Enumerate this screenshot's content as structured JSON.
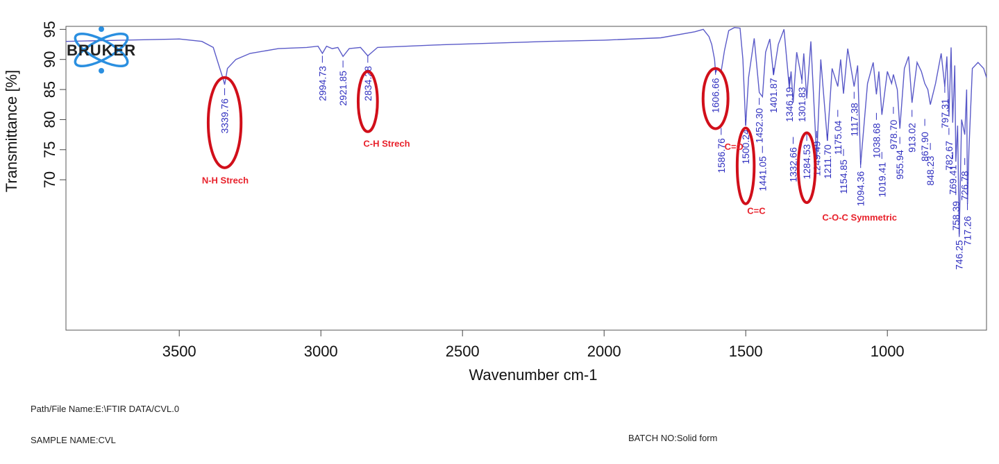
{
  "logo": {
    "text": "BRUKER"
  },
  "footer": {
    "path_label": "Path/File Name:E:\\FTIR DATA/CVL.0",
    "sample_label": "SAMPLE NAME:CVL",
    "batch_label": "BATCH NO:Solid form"
  },
  "colors": {
    "spectrum": "#5a5ac8",
    "peak_labels": "#2f2fbf",
    "annotations": "#e8212b",
    "ellipses": "#d10f1a"
  },
  "chart_data": {
    "type": "line",
    "xlabel": "Wavenumber cm-1",
    "ylabel": "Transmittance [%]",
    "xlim": [
      3900,
      650
    ],
    "ylim": [
      45,
      95.5
    ],
    "x_ticks": [
      3500,
      3000,
      2500,
      2000,
      1500,
      1000
    ],
    "y_ticks": [
      70,
      75,
      80,
      85,
      90,
      95
    ],
    "grid": false,
    "series": [
      {
        "x": [
          3900,
          3700,
          3500,
          3420,
          3380,
          3360,
          3350,
          3345,
          3339.76,
          3330,
          3300,
          3250,
          3150,
          3050,
          3010,
          2994.73,
          2980,
          2960,
          2940,
          2921.85,
          2900,
          2860,
          2834.28,
          2800,
          2600,
          2400,
          2200,
          2000,
          1800,
          1680,
          1650,
          1630,
          1620,
          1610,
          1606.66,
          1600,
          1586.76,
          1575,
          1560,
          1540,
          1520,
          1510,
          1500.24,
          1490,
          1470,
          1452.3,
          1441.05,
          1430,
          1415,
          1401.87,
          1385,
          1365,
          1346.19,
          1340,
          1332.66,
          1320,
          1301.83,
          1295,
          1284.53,
          1270,
          1249.49,
          1235,
          1211.7,
          1195,
          1175.04,
          1165,
          1154.85,
          1140,
          1117.38,
          1105,
          1094.36,
          1070,
          1050,
          1038.68,
          1030,
          1019.41,
          1000,
          985,
          978.7,
          965,
          955.94,
          940,
          925,
          913.02,
          895,
          880,
          867.9,
          857,
          848.23,
          830,
          810,
          797.31,
          790,
          782.67,
          775,
          769.41,
          762,
          758.39,
          752,
          746.25,
          738,
          726.78,
          720,
          717.26,
          712,
          700,
          680,
          660,
          650
        ],
        "y": [
          93.0,
          93.2,
          93.4,
          93.0,
          92.0,
          89.0,
          87.5,
          86.8,
          85.8,
          88.5,
          90.0,
          91.0,
          91.8,
          92.0,
          92.2,
          91.0,
          92.2,
          91.8,
          92.0,
          90.5,
          91.8,
          92.0,
          90.6,
          92.0,
          92.4,
          92.7,
          93.0,
          93.2,
          93.6,
          94.6,
          95.0,
          93.8,
          92.5,
          90.0,
          87.8,
          88.5,
          88.0,
          91.5,
          94.8,
          95.3,
          95.2,
          90.0,
          79.0,
          87.0,
          93.5,
          84.5,
          83.8,
          91.2,
          93.4,
          87.4,
          92.5,
          95.0,
          85.2,
          88.0,
          82.8,
          91.2,
          86.6,
          91.0,
          83.5,
          93.0,
          73.5,
          90.0,
          76.5,
          88.5,
          85.5,
          90.0,
          84.3,
          91.8,
          85.5,
          89.0,
          72.5,
          86.0,
          89.5,
          84.2,
          88.0,
          80.8,
          88.0,
          86.0,
          87.5,
          85.0,
          78.5,
          88.5,
          90.5,
          82.8,
          89.5,
          88.0,
          86.0,
          85.0,
          82.5,
          86.0,
          91.0,
          85.5,
          90.5,
          80.5,
          92.0,
          79.5,
          89.0,
          73.0,
          79.0,
          60.5,
          80.0,
          77.5,
          85.0,
          66.0,
          75.0,
          88.5,
          89.5,
          88.5,
          87.0
        ]
      }
    ],
    "peak_labels": [
      {
        "x": 3339.76,
        "label": "3339.76",
        "y": 80.6
      },
      {
        "x": 2994.73,
        "label": "2994.73",
        "y": 86.0
      },
      {
        "x": 2921.85,
        "label": "2921.85",
        "y": 85.2
      },
      {
        "x": 2834.28,
        "label": "2834.28",
        "y": 86.0
      },
      {
        "x": 1606.66,
        "label": "1606.66",
        "y": 84.0
      },
      {
        "x": 1586.76,
        "label": "1586.76",
        "y": 74.0
      },
      {
        "x": 1500.24,
        "label": "1500.24",
        "y": 75.5
      },
      {
        "x": 1452.3,
        "label": "1452.30",
        "y": 79.0
      },
      {
        "x": 1441.05,
        "label": "1441.05",
        "y": 71.0
      },
      {
        "x": 1401.87,
        "label": "1401.87",
        "y": 84.0
      },
      {
        "x": 1346.19,
        "label": "1346.19",
        "y": 82.5
      },
      {
        "x": 1332.66,
        "label": "1332.66",
        "y": 72.5
      },
      {
        "x": 1301.83,
        "label": "1301.83",
        "y": 82.5
      },
      {
        "x": 1284.53,
        "label": "1284.53",
        "y": 73.0
      },
      {
        "x": 1249.49,
        "label": "1249.49",
        "y": 73.5
      },
      {
        "x": 1211.7,
        "label": "1211.70",
        "y": 73.0
      },
      {
        "x": 1175.04,
        "label": "1175.04",
        "y": 77.0
      },
      {
        "x": 1154.85,
        "label": "1154.85",
        "y": 70.5
      },
      {
        "x": 1117.38,
        "label": "1117.38",
        "y": 80.0
      },
      {
        "x": 1094.36,
        "label": "1094.36",
        "y": 68.5
      },
      {
        "x": 1038.68,
        "label": "1038.68",
        "y": 76.5
      },
      {
        "x": 1019.41,
        "label": "1019.41",
        "y": 70.0
      },
      {
        "x": 978.7,
        "label": "978.70",
        "y": 77.5
      },
      {
        "x": 955.94,
        "label": "955.94",
        "y": 72.5
      },
      {
        "x": 913.02,
        "label": "913.02",
        "y": 77.0
      },
      {
        "x": 867.9,
        "label": "867.90",
        "y": 75.5
      },
      {
        "x": 848.23,
        "label": "848.23",
        "y": 71.5
      },
      {
        "x": 797.31,
        "label": "797.31",
        "y": 81.0
      },
      {
        "x": 782.67,
        "label": "782.67",
        "y": 74.0
      },
      {
        "x": 769.41,
        "label": "769.41",
        "y": 70.0
      },
      {
        "x": 758.39,
        "label": "758.39",
        "y": 64.0
      },
      {
        "x": 746.25,
        "label": "746.25",
        "y": 57.5
      },
      {
        "x": 726.78,
        "label": "726.78",
        "y": 69.0
      },
      {
        "x": 717.26,
        "label": "717.26",
        "y": 61.5
      }
    ],
    "annotations": [
      {
        "text": "N-H Strech",
        "x": 3420,
        "y": 69.4
      },
      {
        "text": "C-H Strech",
        "x": 2850,
        "y": 75.5
      },
      {
        "text": "C=O",
        "x": 1575,
        "y": 75.0
      },
      {
        "text": "C=C",
        "x": 1495,
        "y": 64.3
      },
      {
        "text": "C-O-C Symmetric",
        "x": 1230,
        "y": 63.2
      }
    ],
    "highlight_ellipses": [
      {
        "x": 3339.76,
        "y": 79.5,
        "rx": 58,
        "ry": 7.5
      },
      {
        "x": 2834.28,
        "y": 83.0,
        "rx": 34,
        "ry": 5.0
      },
      {
        "x": 1606.66,
        "y": 83.5,
        "rx": 44,
        "ry": 5.0
      },
      {
        "x": 1500.24,
        "y": 72.3,
        "rx": 30,
        "ry": 6.3
      },
      {
        "x": 1284.53,
        "y": 72.0,
        "rx": 30,
        "ry": 5.8
      }
    ]
  }
}
